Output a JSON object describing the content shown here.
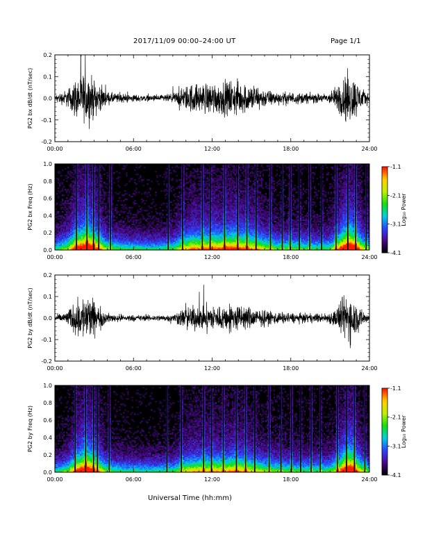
{
  "header": {
    "title": "2017/11/09   00:00–24:00 UT",
    "page": "Page 1/1"
  },
  "xlabel": "Universal Time (hh:mm)",
  "colorbar": {
    "label": "Log₁₀ Power",
    "ticks": [
      "-1.1",
      "-2.1",
      "-3.1",
      "-4.1"
    ],
    "range": [
      -4.1,
      -1.1
    ],
    "colors": [
      "#000000",
      "#4a0a8c",
      "#2b45ff",
      "#00d0e0",
      "#10e010",
      "#c0f000",
      "#ffd000",
      "#ff1a00"
    ]
  },
  "chart_data": [
    {
      "type": "line",
      "ylabel": "PG2 bx dB/dt (nT/sec)",
      "x_ticks": [
        "00:00",
        "06:00",
        "12:00",
        "18:00",
        "24:00"
      ],
      "y_ticks": [
        "-0.2",
        "-0.1",
        "0.0",
        "0.1",
        "0.2"
      ],
      "xlim": [
        0,
        24
      ],
      "ylim": [
        -0.2,
        0.2
      ],
      "activity": {
        "x": [
          0,
          0.5,
          1,
          1.5,
          2,
          2.5,
          3,
          3.5,
          4,
          5,
          6,
          7,
          8,
          9,
          9.5,
          10,
          10.5,
          11,
          11.5,
          12,
          12.5,
          13,
          13.5,
          14,
          14.5,
          15,
          15.5,
          16,
          17,
          18,
          19,
          20,
          20.5,
          21,
          21.5,
          22,
          22.5,
          23,
          23.5,
          24
        ],
        "amplitude": [
          0.02,
          0.04,
          0.06,
          0.12,
          0.15,
          0.17,
          0.12,
          0.08,
          0.04,
          0.03,
          0.025,
          0.02,
          0.02,
          0.03,
          0.06,
          0.08,
          0.1,
          0.09,
          0.1,
          0.11,
          0.1,
          0.11,
          0.12,
          0.11,
          0.1,
          0.09,
          0.08,
          0.06,
          0.04,
          0.04,
          0.035,
          0.03,
          0.03,
          0.04,
          0.08,
          0.15,
          0.17,
          0.12,
          0.06,
          0.03
        ]
      }
    },
    {
      "type": "heatmap",
      "ylabel": "PG2 bx Freq (Hz)",
      "x_ticks": [
        "00:00",
        "06:00",
        "12:00",
        "18:00",
        "24:00"
      ],
      "y_ticks": [
        "0.0",
        "0.2",
        "0.4",
        "0.6",
        "0.8",
        "1.0"
      ],
      "xlim": [
        0,
        24
      ],
      "ylim": [
        0,
        1
      ],
      "z_range": [
        -4.1,
        -1.1
      ],
      "bursts_hours": [
        1.6,
        2.4,
        2.9,
        3.3,
        4.2,
        8.6,
        9.7,
        11.2,
        11.8,
        12.9,
        13.9,
        14.6,
        15.3,
        16.4,
        17.3,
        17.9,
        18.6,
        19.4,
        20.3,
        21.4,
        22.3,
        22.9,
        23.7
      ]
    },
    {
      "type": "line",
      "ylabel": "PG2 by dB/dt (nT/sec)",
      "x_ticks": [
        "00:00",
        "06:00",
        "12:00",
        "18:00",
        "24:00"
      ],
      "y_ticks": [
        "-0.2",
        "-0.1",
        "0.0",
        "0.1",
        "0.2"
      ],
      "xlim": [
        0,
        24
      ],
      "ylim": [
        -0.2,
        0.2
      ],
      "activity": {
        "x": [
          0,
          0.5,
          1,
          1.5,
          2,
          2.5,
          3,
          3.5,
          4,
          5,
          6,
          7,
          8,
          9,
          9.5,
          10,
          10.5,
          11,
          11.5,
          12,
          12.5,
          13,
          13.5,
          14,
          14.5,
          15,
          15.5,
          16,
          17,
          18,
          19,
          20,
          20.5,
          21,
          21.5,
          22,
          22.5,
          23,
          23.5,
          24
        ],
        "amplitude": [
          0.02,
          0.03,
          0.05,
          0.1,
          0.14,
          0.16,
          0.11,
          0.07,
          0.03,
          0.025,
          0.02,
          0.02,
          0.02,
          0.025,
          0.05,
          0.07,
          0.08,
          0.08,
          0.08,
          0.09,
          0.08,
          0.08,
          0.1,
          0.09,
          0.08,
          0.07,
          0.06,
          0.05,
          0.04,
          0.035,
          0.03,
          0.03,
          0.03,
          0.04,
          0.07,
          0.14,
          0.17,
          0.1,
          0.05,
          0.02
        ]
      }
    },
    {
      "type": "heatmap",
      "ylabel": "PG2 by Freq (Hz)",
      "x_ticks": [
        "00:00",
        "06:00",
        "12:00",
        "18:00",
        "24:00"
      ],
      "y_ticks": [
        "0.0",
        "0.2",
        "0.4",
        "0.6",
        "0.8",
        "1.0"
      ],
      "xlim": [
        0,
        24
      ],
      "ylim": [
        0,
        1
      ],
      "z_range": [
        -4.1,
        -1.1
      ],
      "bursts_hours": [
        1.5,
        2.3,
        2.9,
        3.2,
        4.1,
        8.5,
        9.6,
        11.3,
        11.9,
        12.8,
        13.8,
        14.5,
        15.2,
        16.3,
        17.2,
        18.0,
        18.7,
        19.5,
        20.2,
        21.5,
        22.2,
        22.8,
        23.6
      ]
    }
  ]
}
